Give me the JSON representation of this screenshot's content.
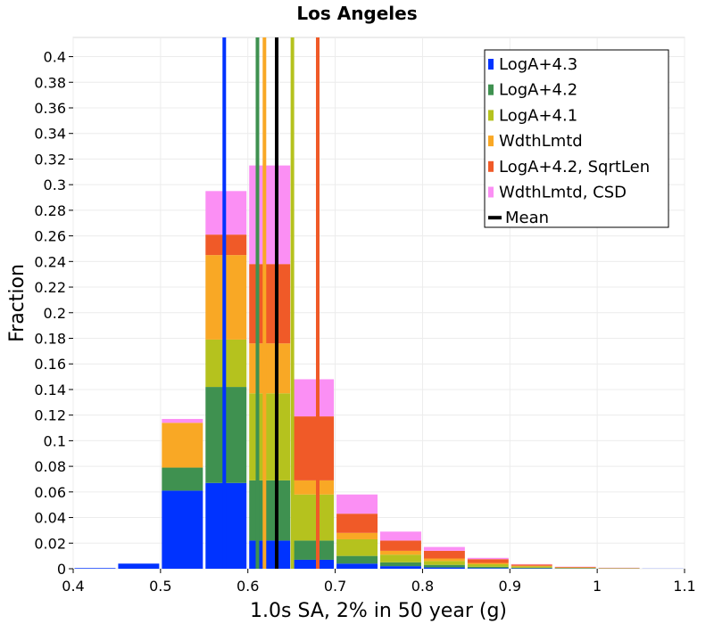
{
  "chart_data": {
    "type": "bar",
    "stacked": true,
    "title": "Los Angeles",
    "xlabel": "1.0s SA, 2% in 50 year (g)",
    "ylabel": "Fraction",
    "xlim": [
      0.4,
      1.1
    ],
    "ylim": [
      0,
      0.415
    ],
    "grid": true,
    "legend_position": "top-right",
    "x_ticks": [
      "0.4",
      "0.5",
      "0.6",
      "0.7",
      "0.8",
      "0.9",
      "1",
      "1.1"
    ],
    "y_ticks": [
      "0",
      "0.02",
      "0.04",
      "0.06",
      "0.08",
      "0.1",
      "0.12",
      "0.14",
      "0.16",
      "0.18",
      "0.2",
      "0.22",
      "0.24",
      "0.26",
      "0.28",
      "0.3",
      "0.32",
      "0.34",
      "0.36",
      "0.38",
      "0.4"
    ],
    "bin_width": 0.05,
    "bin_starts": [
      0.4,
      0.45,
      0.5,
      0.55,
      0.6,
      0.65,
      0.7,
      0.75,
      0.8,
      0.85,
      0.9,
      0.95,
      1.0,
      1.05
    ],
    "series": [
      {
        "name": "LogA+4.3",
        "color": "#0033ff",
        "values": [
          0.0005,
          0.004,
          0.061,
          0.067,
          0.022,
          0.007,
          0.004,
          0.002,
          0.001,
          0.0005,
          0.0003,
          0.0002,
          0.0001,
          0.0001
        ]
      },
      {
        "name": "LogA+4.2",
        "color": "#3f9150",
        "values": [
          0.0,
          0.0,
          0.018,
          0.075,
          0.047,
          0.015,
          0.006,
          0.003,
          0.002,
          0.001,
          0.0005,
          0.0002,
          0.0001,
          0.0
        ]
      },
      {
        "name": "LogA+4.1",
        "color": "#b5c21e",
        "values": [
          0.0,
          0.0,
          0.0,
          0.037,
          0.068,
          0.036,
          0.013,
          0.006,
          0.003,
          0.002,
          0.001,
          0.0004,
          0.0002,
          0.0
        ]
      },
      {
        "name": "WdthLmtd",
        "color": "#f9a825",
        "values": [
          0.0,
          0.0,
          0.035,
          0.066,
          0.039,
          0.011,
          0.005,
          0.003,
          0.002,
          0.001,
          0.0005,
          0.0002,
          0.0001,
          0.0
        ]
      },
      {
        "name": "LogA+4.2, SqrtLen",
        "color": "#f05a28",
        "values": [
          0.0,
          0.0,
          0.0,
          0.016,
          0.062,
          0.05,
          0.015,
          0.008,
          0.006,
          0.003,
          0.001,
          0.0004,
          0.0002,
          0.0
        ]
      },
      {
        "name": "WdthLmtd, CSD",
        "color": "#fb8ff4",
        "values": [
          0.0,
          0.0,
          0.003,
          0.034,
          0.077,
          0.029,
          0.015,
          0.007,
          0.003,
          0.001,
          0.0003,
          0.0002,
          0.0001,
          0.0
        ]
      }
    ],
    "vertical_lines": [
      {
        "name": "LogA+4.3",
        "color": "#0033ff",
        "x": 0.573
      },
      {
        "name": "LogA+4.2",
        "color": "#3f9150",
        "x": 0.611
      },
      {
        "name": "WdthLmtd",
        "color": "#f9a825",
        "x": 0.619
      },
      {
        "name": "LogA+4.1",
        "color": "#b5c21e",
        "x": 0.651
      },
      {
        "name": "LogA+4.2, SqrtLen",
        "color": "#f05a28",
        "x": 0.68
      },
      {
        "name": "Mean",
        "color": "#000000",
        "x": 0.633
      }
    ],
    "legend": [
      {
        "label": "LogA+4.3",
        "color": "#0033ff",
        "kind": "swatch"
      },
      {
        "label": "LogA+4.2",
        "color": "#3f9150",
        "kind": "swatch"
      },
      {
        "label": "LogA+4.1",
        "color": "#b5c21e",
        "kind": "swatch"
      },
      {
        "label": "WdthLmtd",
        "color": "#f9a825",
        "kind": "swatch"
      },
      {
        "label": "LogA+4.2, SqrtLen",
        "color": "#f05a28",
        "kind": "swatch"
      },
      {
        "label": "WdthLmtd, CSD",
        "color": "#fb8ff4",
        "kind": "swatch"
      },
      {
        "label": "Mean",
        "color": "#000000",
        "kind": "line"
      }
    ]
  }
}
